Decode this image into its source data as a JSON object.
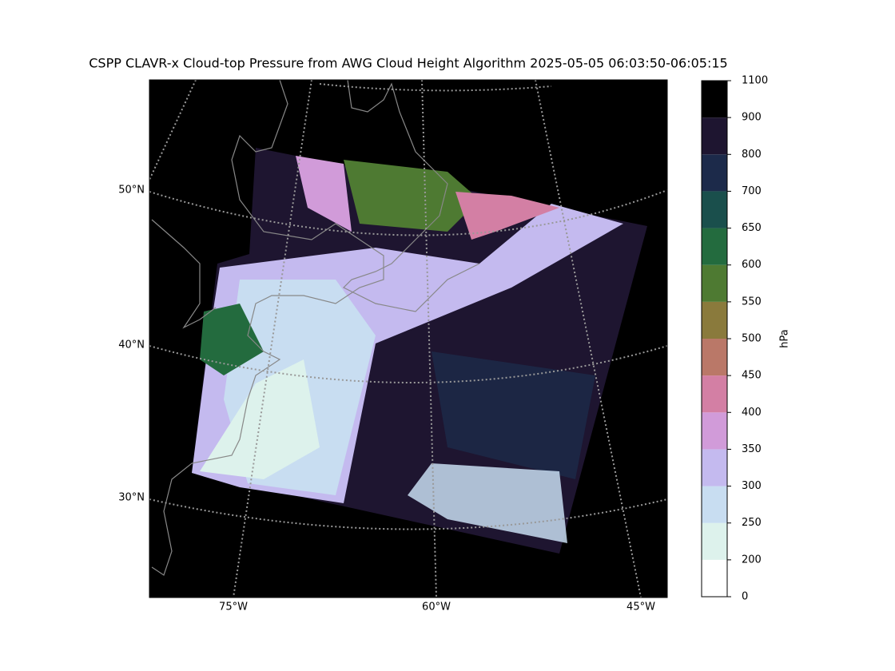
{
  "title": "CSPP CLAVR-x Cloud-top Pressure from AWG Cloud Height Algorithm 2025-05-05 06:03:50-06:05:15",
  "lat_labels": [
    "50°N",
    "40°N",
    "30°N"
  ],
  "lon_labels": [
    "75°W",
    "60°W",
    "45°W"
  ],
  "colorbar": {
    "label": "hPa",
    "ticks": [
      0,
      200,
      250,
      300,
      350,
      400,
      450,
      500,
      550,
      600,
      650,
      700,
      800,
      900,
      1100
    ],
    "colors": [
      "#ffffff",
      "#ddf2ec",
      "#c8ddf1",
      "#c4baef",
      "#d19bd9",
      "#d37fa4",
      "#ba7868",
      "#8a7a3c",
      "#4e7a32",
      "#236b3e",
      "#1a4f4c",
      "#1c2a4a",
      "#1e1530",
      "#000000"
    ]
  }
}
